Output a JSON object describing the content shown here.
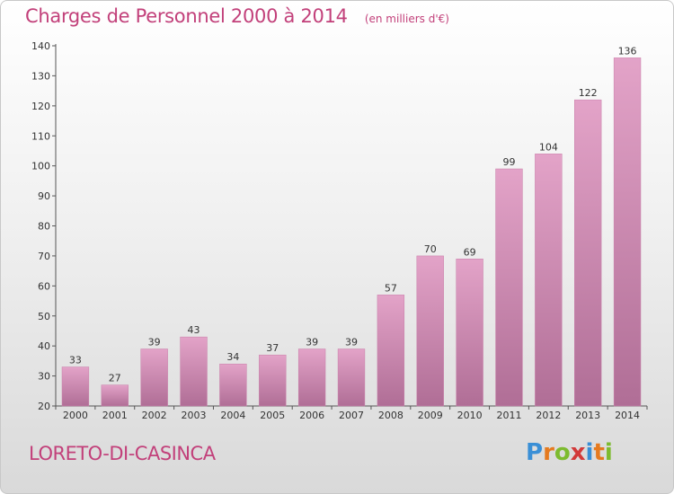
{
  "chart_data": {
    "type": "bar",
    "title": "Charges de Personnel 2000 à 2014",
    "subtitle": "(en milliers d'€)",
    "categories": [
      "2000",
      "2001",
      "2002",
      "2003",
      "2004",
      "2005",
      "2006",
      "2007",
      "2008",
      "2009",
      "2010",
      "2011",
      "2012",
      "2013",
      "2014"
    ],
    "values": [
      33,
      27,
      39,
      43,
      34,
      37,
      39,
      39,
      57,
      70,
      69,
      99,
      104,
      122,
      136
    ],
    "ylim": [
      20,
      140
    ],
    "yticks": [
      20,
      30,
      40,
      50,
      60,
      70,
      80,
      90,
      100,
      110,
      120,
      130,
      140
    ],
    "grid": false,
    "bar_color_top": "#e3a3c8",
    "bar_color_bottom": "#b06e96"
  },
  "place_label": "LORETO-DI-CASINCA",
  "logo": {
    "letters": [
      "P",
      "r",
      "o",
      "x",
      "i",
      "t",
      "i"
    ],
    "colors": [
      "#3a8fd6",
      "#e57a1f",
      "#7dbb2f",
      "#d23a3a",
      "#3a8fd6",
      "#e57a1f",
      "#7dbb2f"
    ]
  },
  "colors": {
    "accent": "#c2407a",
    "axis": "#555555"
  }
}
